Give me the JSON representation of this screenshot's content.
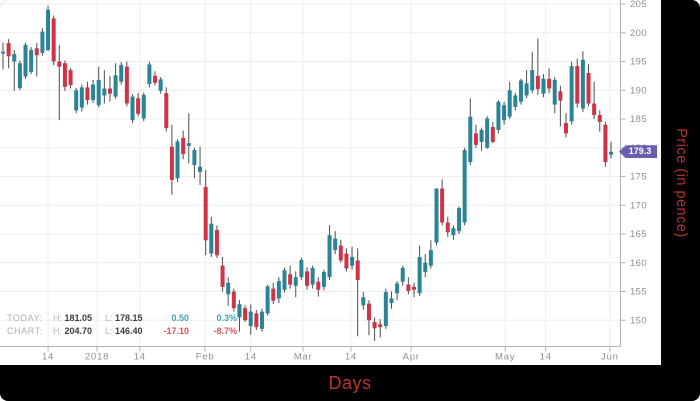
{
  "colors": {
    "up_candle": "#2b8496",
    "down_candle": "#cf3347",
    "wick": "#4d4d4d",
    "badge": "#6a5caf",
    "axis_title": "#b93330",
    "positive": "#44a3b3",
    "negative": "#e0525f",
    "grid": "#ededed",
    "axis_line": "#b3b3b3",
    "tick_label": "#8f8f8f"
  },
  "price_badge": {
    "value": "179.3"
  },
  "legend": {
    "rows": [
      {
        "label": "TODAY:",
        "h_prefix": "H:",
        "high": "181.05",
        "l_prefix": "L:",
        "low": "178.15",
        "change": "0.50",
        "percent": "0.3%",
        "trend": "up"
      },
      {
        "label": "CHART:",
        "h_prefix": "H:",
        "high": "204.70",
        "l_prefix": "L:",
        "low": "146.40",
        "change": "-17.10",
        "percent": "-8.7%",
        "trend": "down"
      }
    ]
  },
  "chart_data": {
    "type": "candlestick",
    "title": "",
    "xlabel": "Days",
    "ylabel": "Price (in pence)",
    "ylim": [
      146,
      206
    ],
    "grid": true,
    "last_price": 179.3,
    "chart_high": 204.7,
    "chart_low": 146.4,
    "y_tick_values": [
      150,
      155,
      160,
      165,
      170,
      175,
      180,
      185,
      190,
      195,
      200,
      205
    ],
    "x_ticks": [
      {
        "label": "14",
        "index": 8
      },
      {
        "label": "2018",
        "index": 16.7
      },
      {
        "label": "14",
        "index": 24.3
      },
      {
        "label": "Feb",
        "index": 35.9
      },
      {
        "label": "14",
        "index": 44.0
      },
      {
        "label": "Mar",
        "index": 53.3
      },
      {
        "label": "14",
        "index": 61.8
      },
      {
        "label": "Apr",
        "index": 72.5
      },
      {
        "label": "May",
        "index": 89.2
      },
      {
        "label": "14",
        "index": 96.4
      },
      {
        "label": "Jun",
        "index": 107.8
      }
    ],
    "candles_ohlc": [
      [
        196.4,
        198.3,
        193.6,
        196.7
      ],
      [
        198.2,
        198.9,
        193.8,
        195.9
      ],
      [
        195.0,
        197.0,
        189.9,
        196.3
      ],
      [
        190.4,
        195.2,
        190.0,
        194.7
      ],
      [
        192.4,
        198.3,
        192.0,
        197.9
      ],
      [
        193.2,
        197.5,
        192.8,
        197.0
      ],
      [
        197.3,
        198.2,
        192.4,
        196.1
      ],
      [
        196.5,
        200.8,
        196.0,
        200.2
      ],
      [
        197.0,
        204.7,
        196.8,
        204.0
      ],
      [
        202.5,
        203.0,
        194.4,
        195.0
      ],
      [
        195.0,
        197.9,
        184.8,
        194.1
      ],
      [
        194.7,
        195.2,
        189.9,
        190.6
      ],
      [
        193.5,
        193.9,
        190.3,
        190.9
      ],
      [
        186.5,
        190.4,
        186.0,
        190.0
      ],
      [
        187.0,
        191.0,
        186.3,
        190.5
      ],
      [
        190.5,
        191.5,
        187.5,
        188.3
      ],
      [
        188.3,
        191.8,
        187.8,
        191.0
      ],
      [
        187.4,
        194.1,
        187.0,
        191.8
      ],
      [
        189.1,
        193.5,
        187.7,
        190.3
      ],
      [
        190.3,
        192.5,
        188.0,
        189.4
      ],
      [
        188.9,
        194.7,
        188.5,
        192.6
      ],
      [
        191.5,
        194.9,
        191.0,
        194.4
      ],
      [
        194.1,
        195.0,
        187.2,
        187.7
      ],
      [
        184.8,
        189.3,
        184.3,
        188.9
      ],
      [
        188.6,
        189.5,
        185.5,
        185.9
      ],
      [
        185.1,
        189.6,
        184.6,
        189.2
      ],
      [
        191.1,
        195.0,
        190.5,
        194.5
      ],
      [
        192.5,
        193.3,
        190.8,
        191.3
      ],
      [
        189.9,
        192.3,
        189.4,
        191.9
      ],
      [
        189.5,
        190.5,
        182.8,
        183.4
      ],
      [
        180.2,
        184.0,
        171.8,
        174.4
      ],
      [
        174.7,
        181.5,
        174.0,
        181.1
      ],
      [
        181.7,
        183.0,
        178.0,
        178.9
      ],
      [
        180.3,
        186.0,
        177.3,
        180.8
      ],
      [
        177.0,
        180.0,
        174.7,
        179.6
      ],
      [
        175.8,
        180.2,
        173.5,
        176.7
      ],
      [
        173.2,
        176.1,
        161.3,
        163.9
      ],
      [
        161.6,
        168.0,
        161.0,
        166.8
      ],
      [
        165.7,
        166.5,
        160.8,
        161.3
      ],
      [
        159.5,
        161.0,
        155.0,
        155.8
      ],
      [
        154.5,
        157.5,
        152.5,
        156.5
      ],
      [
        155.0,
        155.5,
        151.5,
        152.1
      ],
      [
        150.5,
        153.5,
        148.0,
        152.8
      ],
      [
        152.1,
        152.6,
        149.7,
        150.0
      ],
      [
        149.0,
        152.8,
        147.5,
        151.5
      ],
      [
        151.2,
        151.8,
        148.3,
        148.8
      ],
      [
        148.5,
        152.0,
        148.0,
        151.5
      ],
      [
        151.2,
        156.2,
        150.8,
        155.9
      ],
      [
        155.5,
        156.5,
        152.8,
        153.4
      ],
      [
        153.8,
        157.5,
        153.0,
        156.8
      ],
      [
        155.3,
        159.2,
        154.8,
        158.7
      ],
      [
        158.0,
        159.5,
        155.5,
        156.2
      ],
      [
        156.0,
        158.5,
        154.0,
        157.5
      ],
      [
        157.5,
        160.9,
        157.0,
        160.5
      ],
      [
        158.5,
        159.2,
        155.3,
        156.0
      ],
      [
        156.2,
        159.5,
        155.5,
        159.1
      ],
      [
        156.7,
        157.5,
        154.1,
        155.3
      ],
      [
        155.8,
        158.8,
        155.2,
        158.4
      ],
      [
        157.5,
        166.5,
        157.0,
        164.8
      ],
      [
        162.2,
        165.5,
        161.5,
        164.2
      ],
      [
        163.0,
        164.0,
        160.0,
        160.4
      ],
      [
        161.6,
        162.5,
        158.5,
        159.0
      ],
      [
        159.5,
        162.8,
        158.8,
        161.0
      ],
      [
        160.4,
        162.5,
        147.2,
        157.0
      ],
      [
        152.6,
        154.9,
        151.8,
        154.0
      ],
      [
        152.9,
        153.5,
        147.4,
        150.0
      ],
      [
        149.7,
        150.5,
        146.4,
        148.6
      ],
      [
        149.3,
        150.2,
        147.0,
        148.8
      ],
      [
        149.0,
        155.5,
        148.5,
        154.9
      ],
      [
        153.0,
        155.0,
        152.0,
        153.8
      ],
      [
        154.7,
        156.8,
        153.5,
        156.4
      ],
      [
        156.7,
        159.5,
        156.0,
        159.1
      ],
      [
        156.2,
        157.5,
        154.5,
        155.1
      ],
      [
        155.8,
        156.5,
        154.0,
        155.3
      ],
      [
        154.7,
        163.0,
        154.2,
        161.0
      ],
      [
        158.4,
        161.5,
        157.5,
        160.0
      ],
      [
        159.5,
        163.9,
        159.0,
        162.2
      ],
      [
        163.5,
        173.0,
        163.0,
        172.9
      ],
      [
        172.9,
        174.5,
        166.5,
        167.0
      ],
      [
        167.0,
        168.0,
        164.5,
        165.3
      ],
      [
        164.8,
        166.5,
        164.0,
        166.0
      ],
      [
        165.5,
        169.8,
        165.0,
        169.5
      ],
      [
        167.0,
        180.0,
        166.5,
        179.6
      ],
      [
        177.5,
        188.6,
        177.0,
        185.4
      ],
      [
        182.5,
        184.0,
        180.0,
        180.5
      ],
      [
        181.0,
        183.5,
        179.5,
        183.1
      ],
      [
        180.0,
        185.5,
        179.8,
        185.1
      ],
      [
        183.6,
        184.5,
        180.8,
        181.0
      ],
      [
        183.1,
        188.3,
        182.5,
        188.0
      ],
      [
        184.8,
        188.0,
        184.0,
        187.4
      ],
      [
        185.4,
        191.5,
        185.0,
        190.0
      ],
      [
        187.1,
        189.5,
        186.5,
        189.1
      ],
      [
        188.0,
        192.0,
        187.5,
        191.7
      ],
      [
        189.1,
        193.5,
        188.6,
        191.2
      ],
      [
        190.0,
        196.7,
        189.5,
        193.5
      ],
      [
        192.5,
        199.0,
        189.2,
        190.2
      ],
      [
        189.4,
        192.8,
        188.8,
        192.0
      ],
      [
        192.0,
        193.8,
        189.5,
        190.3
      ],
      [
        187.5,
        192.3,
        186.0,
        191.8
      ],
      [
        189.8,
        190.8,
        183.7,
        188.2
      ],
      [
        184.3,
        186.0,
        181.8,
        182.5
      ],
      [
        184.6,
        195.0,
        184.0,
        194.2
      ],
      [
        194.2,
        195.5,
        187.0,
        187.7
      ],
      [
        186.8,
        196.8,
        186.2,
        195.3
      ],
      [
        193.0,
        194.5,
        187.2,
        187.7
      ],
      [
        187.7,
        191.5,
        185.0,
        185.7
      ],
      [
        185.7,
        186.5,
        182.8,
        184.5
      ],
      [
        184.0,
        184.5,
        176.7,
        177.5
      ],
      [
        178.8,
        181.05,
        178.15,
        179.3
      ]
    ]
  }
}
